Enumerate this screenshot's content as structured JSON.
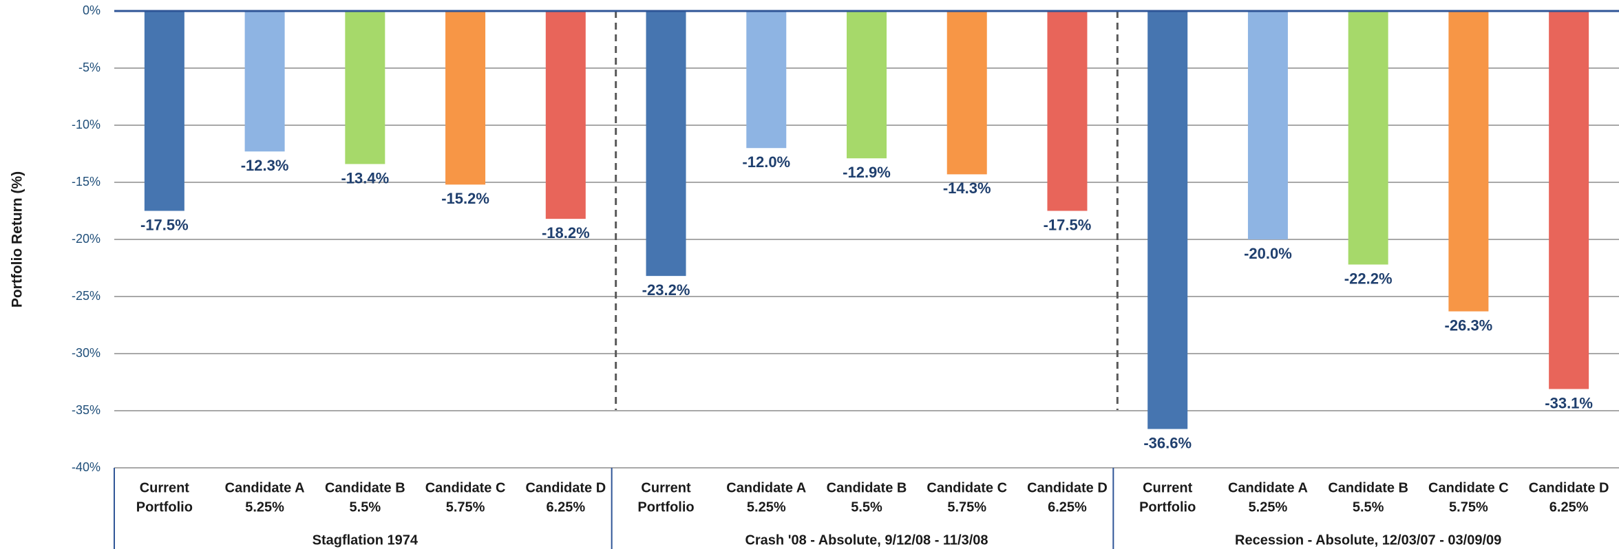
{
  "chart_data": {
    "type": "bar",
    "ylabel": "Portfolio Return (%)",
    "groups": [
      "Stagflation 1974",
      "Crash '08 - Absolute, 9/12/08 - 11/3/08",
      "Recession - Absolute, 12/03/07 - 03/09/09"
    ],
    "series": [
      {
        "name": [
          "Current",
          "Portfolio"
        ],
        "color": "#4675b0",
        "values": [
          -17.5,
          -23.2,
          -36.6
        ],
        "value_labels": [
          "-17.5%",
          "-23.2%",
          "-36.6%"
        ]
      },
      {
        "name": [
          "Candidate A",
          "5.25%"
        ],
        "color": "#8eb4e3",
        "values": [
          -12.3,
          -12.0,
          -20.0
        ],
        "value_labels": [
          "-12.3%",
          "-12.0%",
          "-20.0%"
        ]
      },
      {
        "name": [
          "Candidate B",
          "5.5%"
        ],
        "color": "#a6d96a",
        "values": [
          -13.4,
          -12.9,
          -22.2
        ],
        "value_labels": [
          "-13.4%",
          "-12.9%",
          "-22.2%"
        ]
      },
      {
        "name": [
          "Candidate C",
          "5.75%"
        ],
        "color": "#f79646",
        "values": [
          -15.2,
          -14.3,
          -26.3
        ],
        "value_labels": [
          "-15.2%",
          "-14.3%",
          "-26.3%"
        ]
      },
      {
        "name": [
          "Candidate D",
          "6.25%"
        ],
        "color": "#e8655a",
        "values": [
          -18.2,
          -17.5,
          -33.1
        ],
        "value_labels": [
          "-18.2%",
          "-17.5%",
          "-33.1%"
        ]
      }
    ],
    "ylim": [
      -40,
      0
    ],
    "yticks": [
      {
        "value": 0,
        "label": "0%"
      },
      {
        "value": -5,
        "label": "-5%"
      },
      {
        "value": -10,
        "label": "-10%"
      },
      {
        "value": -15,
        "label": "-15%"
      },
      {
        "value": -20,
        "label": "-20%"
      },
      {
        "value": -25,
        "label": "-25%"
      },
      {
        "value": -30,
        "label": "-30%"
      },
      {
        "value": -35,
        "label": "-35%"
      },
      {
        "value": -40,
        "label": "-40%"
      }
    ],
    "grid": true
  }
}
